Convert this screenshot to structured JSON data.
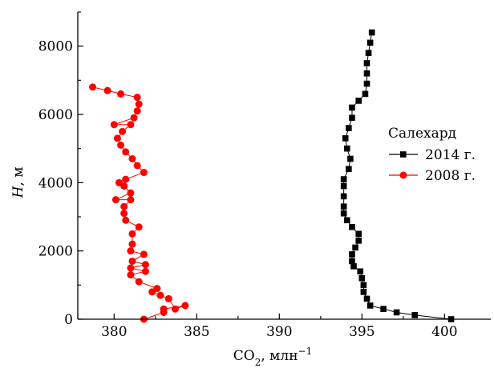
{
  "chart_data": {
    "type": "scatter",
    "title": "",
    "xlabel": "CO₂, млн⁻¹",
    "xlabel_parts": {
      "main": "CO",
      "sub": "2",
      "unit": ", млн",
      "sup": "−1"
    },
    "ylabel": "H, м",
    "ylabel_parts": {
      "var": "H",
      "unit": ", м"
    },
    "xlim": [
      377.8,
      402.8
    ],
    "ylim": [
      0,
      9000
    ],
    "xticks": [
      380,
      385,
      390,
      395,
      400
    ],
    "yticks": [
      0,
      2000,
      4000,
      6000,
      8000
    ],
    "grid": false,
    "legend": {
      "title": "Салехард",
      "placement": "right",
      "entries": [
        "2014 г.",
        "2008 г."
      ]
    },
    "series": [
      {
        "name": "2014 г.",
        "color": "#000000",
        "marker": "square",
        "points": [
          [
            400.4,
            0
          ],
          [
            398.2,
            120
          ],
          [
            397.1,
            200
          ],
          [
            396.3,
            300
          ],
          [
            395.5,
            400
          ],
          [
            395.3,
            600
          ],
          [
            395.1,
            800
          ],
          [
            395.1,
            1000
          ],
          [
            395.0,
            1200
          ],
          [
            394.9,
            1400
          ],
          [
            394.5,
            1550
          ],
          [
            394.4,
            1700
          ],
          [
            394.4,
            1900
          ],
          [
            394.6,
            2100
          ],
          [
            394.8,
            2300
          ],
          [
            394.8,
            2500
          ],
          [
            394.4,
            2700
          ],
          [
            394.1,
            2900
          ],
          [
            393.9,
            3100
          ],
          [
            393.9,
            3300
          ],
          [
            393.9,
            3600
          ],
          [
            393.9,
            3900
          ],
          [
            393.9,
            4100
          ],
          [
            394.2,
            4400
          ],
          [
            394.3,
            4700
          ],
          [
            394.1,
            5000
          ],
          [
            394.0,
            5300
          ],
          [
            394.2,
            5600
          ],
          [
            394.4,
            5900
          ],
          [
            394.4,
            6200
          ],
          [
            394.8,
            6400
          ],
          [
            395.2,
            6600
          ],
          [
            395.3,
            6900
          ],
          [
            395.3,
            7200
          ],
          [
            395.3,
            7500
          ],
          [
            395.4,
            7800
          ],
          [
            395.5,
            8100
          ],
          [
            395.6,
            8400
          ]
        ]
      },
      {
        "name": "2008 г.",
        "color": "#ff0000",
        "marker": "circle",
        "points": [
          [
            381.8,
            0
          ],
          [
            383.0,
            200
          ],
          [
            383.0,
            300
          ],
          [
            384.3,
            400
          ],
          [
            383.7,
            300
          ],
          [
            383.3,
            600
          ],
          [
            382.8,
            700
          ],
          [
            382.3,
            800
          ],
          [
            382.6,
            900
          ],
          [
            381.5,
            1100
          ],
          [
            381.0,
            1300
          ],
          [
            381.9,
            1400
          ],
          [
            381.0,
            1500
          ],
          [
            381.9,
            1600
          ],
          [
            381.1,
            1700
          ],
          [
            381.8,
            1900
          ],
          [
            381.0,
            2000
          ],
          [
            381.1,
            2200
          ],
          [
            381.1,
            2500
          ],
          [
            381.5,
            2700
          ],
          [
            380.7,
            2900
          ],
          [
            380.6,
            3100
          ],
          [
            380.6,
            3300
          ],
          [
            381.0,
            3500
          ],
          [
            380.1,
            3500
          ],
          [
            381.0,
            3700
          ],
          [
            380.6,
            3900
          ],
          [
            380.3,
            4000
          ],
          [
            380.7,
            4100
          ],
          [
            381.8,
            4300
          ],
          [
            381.4,
            4500
          ],
          [
            381.1,
            4700
          ],
          [
            380.7,
            4900
          ],
          [
            380.4,
            5100
          ],
          [
            380.2,
            5300
          ],
          [
            380.5,
            5500
          ],
          [
            381.0,
            5700
          ],
          [
            380.0,
            5700
          ],
          [
            381.2,
            5900
          ],
          [
            381.4,
            6100
          ],
          [
            381.5,
            6300
          ],
          [
            381.4,
            6500
          ],
          [
            380.4,
            6600
          ],
          [
            379.6,
            6700
          ],
          [
            378.7,
            6800
          ]
        ]
      }
    ]
  }
}
